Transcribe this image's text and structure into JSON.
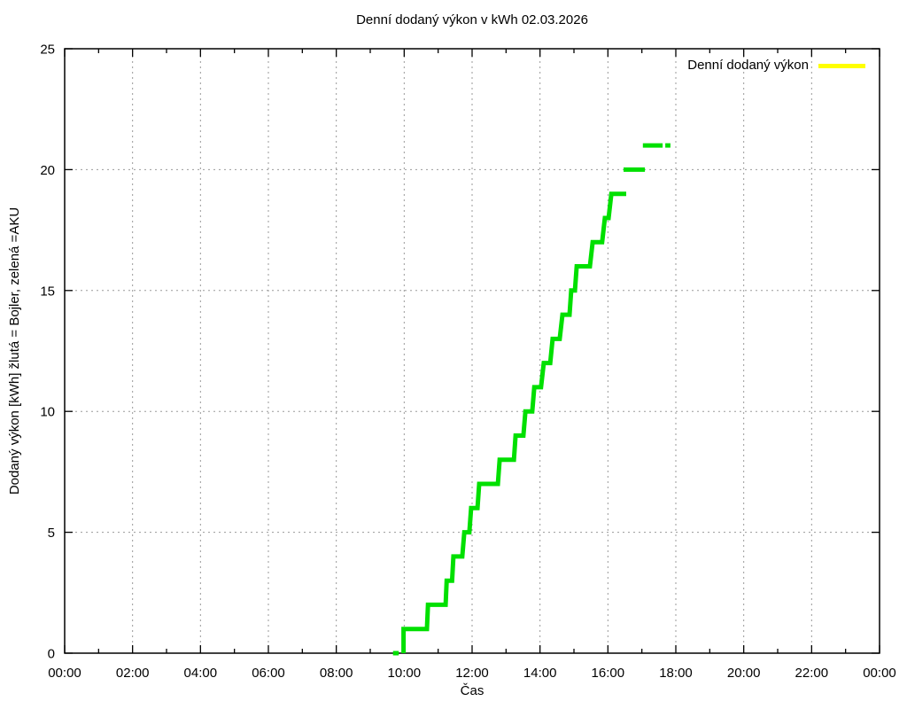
{
  "chart_data": {
    "type": "line",
    "style": "steps",
    "title": "Denní dodaný výkon v kWh 02.03.2026",
    "xlabel": "Čas",
    "ylabel": "Dodaný výkon [kWh]  žlutá = Bojler, zelená =AKU",
    "xlim": [
      0,
      24
    ],
    "ylim": [
      0,
      25
    ],
    "grid": true,
    "x_tick_hours": [
      0,
      2,
      4,
      6,
      8,
      10,
      12,
      14,
      16,
      18,
      20,
      22,
      24
    ],
    "x_tick_labels": [
      "00:00",
      "02:00",
      "04:00",
      "06:00",
      "08:00",
      "10:00",
      "12:00",
      "14:00",
      "16:00",
      "18:00",
      "20:00",
      "22:00",
      "00:00"
    ],
    "x_minor_tick_hours": [
      1,
      3,
      5,
      7,
      9,
      11,
      13,
      15,
      17,
      19,
      21,
      23
    ],
    "y_ticks": [
      0,
      5,
      10,
      15,
      20,
      25
    ],
    "legend": {
      "position": "top-right-inside",
      "entries": [
        {
          "label": "Denní dodaný výkon",
          "color": "#ffff00"
        }
      ]
    },
    "colors": {
      "series_green": "#00e000",
      "legend_yellow": "#ffff00",
      "grid": "#9a9a9a",
      "axis": "#000000",
      "background": "#ffffff"
    },
    "series": [
      {
        "color": "#00e000",
        "line_width": 5,
        "segments": [
          [
            [
              9.67,
              0
            ],
            [
              9.84,
              0
            ]
          ],
          [
            [
              9.98,
              0
            ],
            [
              9.98,
              1
            ],
            [
              10.67,
              1
            ],
            [
              10.7,
              2
            ],
            [
              11.22,
              2
            ],
            [
              11.25,
              3
            ],
            [
              11.41,
              3
            ],
            [
              11.45,
              4
            ],
            [
              11.71,
              4
            ],
            [
              11.77,
              5
            ],
            [
              11.92,
              5
            ],
            [
              11.97,
              6
            ],
            [
              12.16,
              6
            ],
            [
              12.21,
              7
            ],
            [
              12.76,
              7
            ],
            [
              12.81,
              8
            ],
            [
              13.23,
              8
            ],
            [
              13.28,
              9
            ],
            [
              13.51,
              9
            ],
            [
              13.57,
              10
            ],
            [
              13.77,
              10
            ],
            [
              13.83,
              11
            ],
            [
              14.03,
              11
            ],
            [
              14.11,
              12
            ],
            [
              14.3,
              12
            ],
            [
              14.37,
              13
            ],
            [
              14.58,
              13
            ],
            [
              14.66,
              14
            ],
            [
              14.87,
              14
            ],
            [
              14.92,
              15
            ],
            [
              15.03,
              15
            ],
            [
              15.08,
              16
            ],
            [
              15.47,
              16
            ],
            [
              15.55,
              17
            ],
            [
              15.83,
              17
            ],
            [
              15.91,
              18
            ],
            [
              16.02,
              18
            ],
            [
              16.1,
              19
            ],
            [
              16.54,
              19
            ]
          ],
          [
            [
              16.46,
              20
            ],
            [
              17.09,
              20
            ]
          ],
          [
            [
              17.03,
              21
            ],
            [
              17.61,
              21
            ]
          ],
          [
            [
              17.69,
              21
            ],
            [
              17.84,
              21
            ]
          ]
        ]
      }
    ]
  }
}
